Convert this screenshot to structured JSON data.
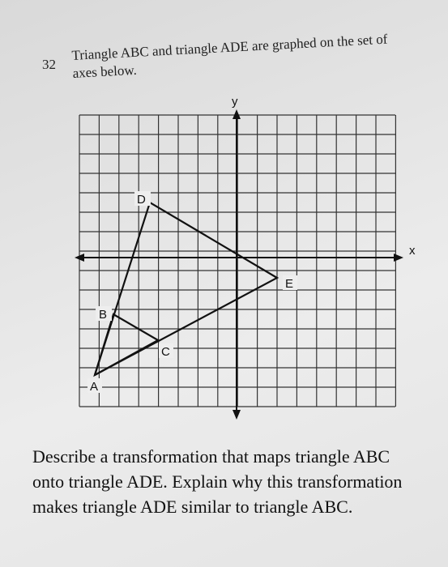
{
  "question": {
    "number": "32",
    "intro": "Triangle ABC and triangle ADE are graphed on the set of axes below.",
    "prompt": "Describe a transformation that maps triangle ABC onto triangle ADE. Explain why this transformation makes triangle ADE similar to triangle ABC."
  },
  "graph": {
    "x_label": "x",
    "y_label": "y",
    "points": [
      "A",
      "B",
      "C",
      "D",
      "E"
    ]
  }
}
